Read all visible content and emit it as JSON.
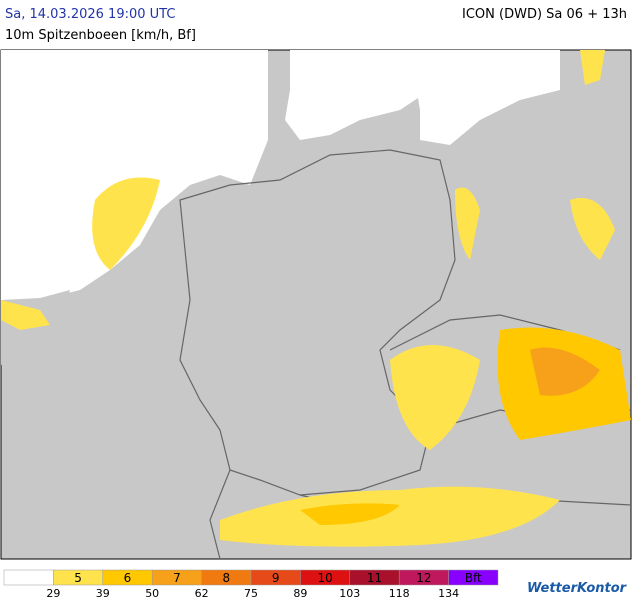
{
  "header": {
    "datetime": "Sa, 14.03.2026 19:00 UTC",
    "model": "ICON (DWD) Sa 06 + 13h",
    "subtitle": "10m Spitzenboeen [km/h, Bf]"
  },
  "legend": {
    "classes": [
      {
        "label": null,
        "color": "#ffffff"
      },
      {
        "label": "5",
        "color": "#ffe34d"
      },
      {
        "label": "6",
        "color": "#ffc800"
      },
      {
        "label": "7",
        "color": "#f7a01a"
      },
      {
        "label": "8",
        "color": "#f07a10"
      },
      {
        "label": "9",
        "color": "#e64a19"
      },
      {
        "label": "10",
        "color": "#dd1111"
      },
      {
        "label": "11",
        "color": "#a8102c"
      },
      {
        "label": "12",
        "color": "#c0185c"
      },
      {
        "label": "Bft",
        "color": "#8800ff"
      }
    ],
    "thresholds": [
      29,
      39,
      50,
      62,
      75,
      89,
      103,
      118,
      134
    ]
  },
  "brand": "WetterKontor"
}
